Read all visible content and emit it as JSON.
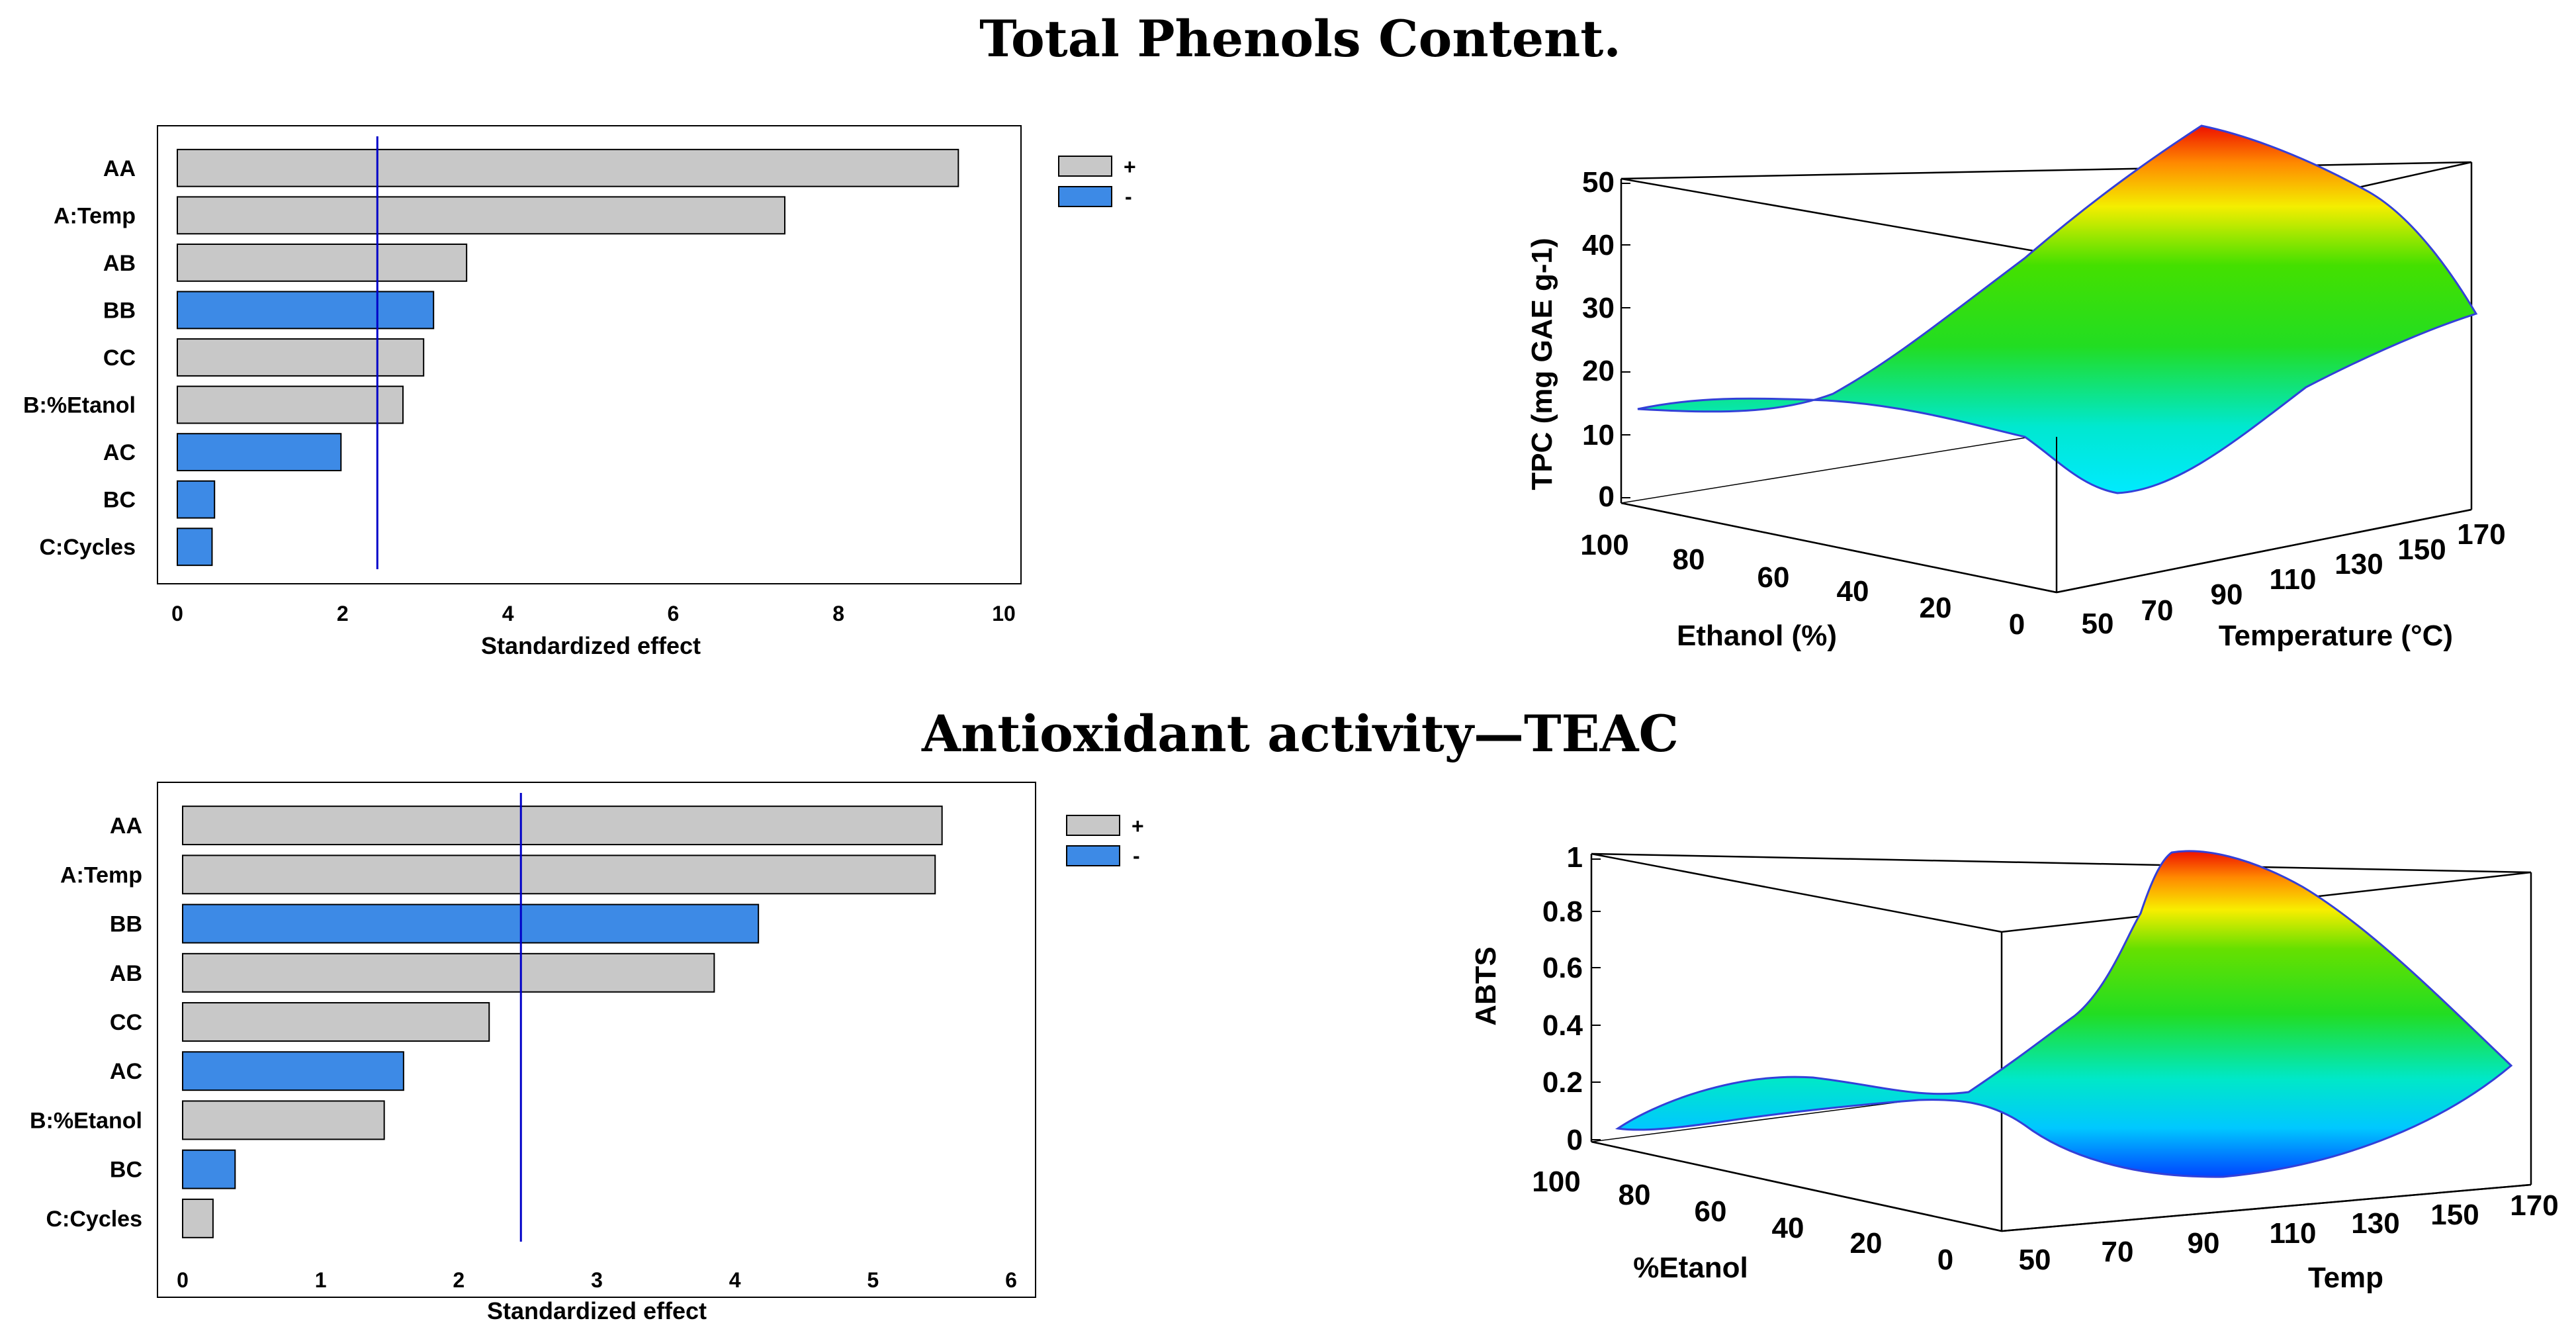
{
  "titles": {
    "top": "Total Phenols Content.",
    "bottom": "Antioxidant activity—TEAC"
  },
  "colors": {
    "positive": "#c8c8c8",
    "negative": "#3d8ae6",
    "reference_line": "#0000c8"
  },
  "legend": {
    "positive_label": "+",
    "negative_label": "-"
  },
  "chart_data": [
    {
      "type": "bar",
      "orientation": "horizontal",
      "title": "Total Phenols Content.",
      "xlabel": "Standardized effect",
      "xlim": [
        0,
        10
      ],
      "xticks": [
        "0",
        "2",
        "4",
        "6",
        "8",
        "10"
      ],
      "reference_line": 2.42,
      "categories": [
        "AA",
        "A:Temp",
        "AB",
        "BB",
        "CC",
        "B:%Etanol",
        "AC",
        "BC",
        "C:Cycles"
      ],
      "values": [
        9.45,
        7.35,
        3.5,
        3.1,
        2.98,
        2.73,
        1.98,
        0.45,
        0.42
      ],
      "signs": [
        "+",
        "+",
        "+",
        "-",
        "+",
        "+",
        "-",
        "-",
        "-"
      ]
    },
    {
      "type": "surface3d",
      "zlabel": "TPC (mg GAE g-1)",
      "zticks": [
        "0",
        "10",
        "20",
        "30",
        "40",
        "50"
      ],
      "ylabel": "Ethanol (%)",
      "yticks": [
        "100",
        "80",
        "60",
        "40",
        "20",
        "0"
      ],
      "xlabel": "Temperature (°C)",
      "xticks": [
        "50",
        "70",
        "90",
        "110",
        "130",
        "150",
        "170"
      ]
    },
    {
      "type": "bar",
      "orientation": "horizontal",
      "title": "Antioxidant activity—TEAC",
      "xlabel": "Standardized effect",
      "xlim": [
        0,
        6
      ],
      "xticks": [
        "0",
        "1",
        "2",
        "3",
        "4",
        "5",
        "6"
      ],
      "reference_line": 2.45,
      "categories": [
        "AA",
        "A:Temp",
        "BB",
        "AB",
        "CC",
        "AC",
        "B:%Etanol",
        "BC",
        "C:Cycles"
      ],
      "values": [
        5.5,
        5.45,
        4.17,
        3.85,
        2.22,
        1.6,
        1.46,
        0.38,
        0.22
      ],
      "signs": [
        "+",
        "+",
        "-",
        "+",
        "+",
        "-",
        "+",
        "-",
        "+"
      ]
    },
    {
      "type": "surface3d",
      "zlabel": "ABTS",
      "zticks": [
        "0",
        "0.2",
        "0.4",
        "0.6",
        "0.8",
        "1"
      ],
      "ylabel": "%Etanol",
      "yticks": [
        "100",
        "80",
        "60",
        "40",
        "20",
        "0"
      ],
      "xlabel": "Temp",
      "xticks": [
        "50",
        "70",
        "90",
        "110",
        "130",
        "150",
        "170"
      ]
    }
  ]
}
